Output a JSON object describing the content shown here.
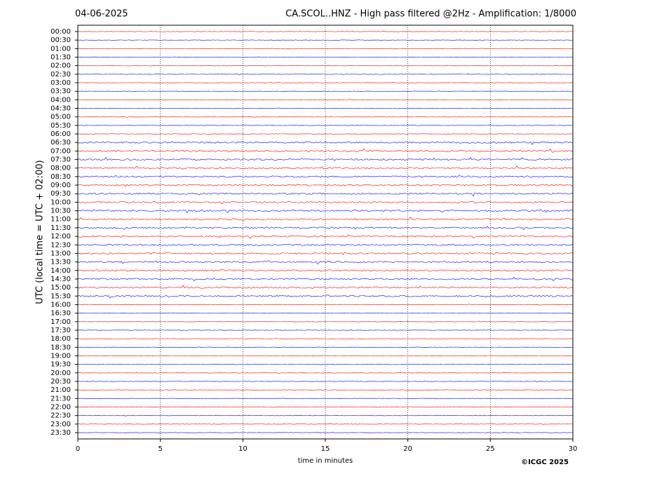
{
  "chart_data": {
    "type": "helicorder",
    "date": "04-06-2025",
    "title": "CA.SCOL..HNZ - High pass filtered @2Hz - Amplification: 1/8000",
    "xlabel": "time in minutes",
    "ylabel": "UTC (local time = UTC + 02:00)",
    "credit": "©ICGC 2025",
    "rows": [
      "00:00",
      "00:30",
      "01:00",
      "01:30",
      "02:00",
      "02:30",
      "03:00",
      "03:30",
      "04:00",
      "04:30",
      "05:00",
      "05:30",
      "06:00",
      "06:30",
      "07:00",
      "07:30",
      "08:00",
      "08:30",
      "09:00",
      "09:30",
      "10:00",
      "10:30",
      "11:00",
      "11:30",
      "12:00",
      "12:30",
      "13:00",
      "13:30",
      "14:00",
      "14:30",
      "15:00",
      "15:30",
      "16:00",
      "16:30",
      "17:00",
      "17:30",
      "18:00",
      "18:30",
      "19:00",
      "19:30",
      "20:00",
      "20:30",
      "21:00",
      "21:30",
      "22:00",
      "22:30",
      "23:00",
      "23:30"
    ],
    "colors": [
      "#ff0000",
      "#0000ff"
    ],
    "xlim": [
      0,
      30
    ],
    "xticks": [
      0,
      5,
      10,
      15,
      20,
      25,
      30
    ],
    "grid": true
  }
}
